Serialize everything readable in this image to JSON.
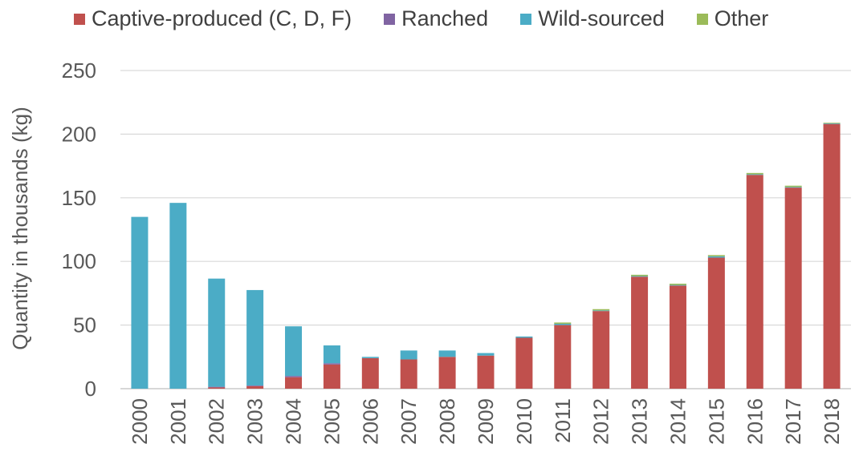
{
  "chart_data": {
    "type": "bar",
    "stacked": true,
    "title": "",
    "xlabel": "",
    "ylabel": "Quantity in thousands (kg)",
    "ylim": [
      0,
      250
    ],
    "yticks": [
      0,
      50,
      100,
      150,
      200,
      250
    ],
    "grid": true,
    "legend_position": "top",
    "categories": [
      "2000",
      "2001",
      "2002",
      "2003",
      "2004",
      "2005",
      "2006",
      "2007",
      "2008",
      "2009",
      "2010",
      "2011",
      "2012",
      "2013",
      "2014",
      "2015",
      "2016",
      "2017",
      "2018"
    ],
    "series": [
      {
        "name": "Captive-produced (C, D, F)",
        "color": "#c0504d",
        "values": [
          0,
          0,
          1,
          2,
          9,
          19,
          24,
          23,
          25,
          26,
          40,
          50,
          61,
          88,
          81,
          103,
          168,
          158,
          208
        ]
      },
      {
        "name": "Ranched",
        "color": "#8064a2",
        "values": [
          0,
          0,
          0.5,
          0.5,
          1,
          1,
          0,
          0,
          0,
          0,
          0,
          0,
          0,
          0,
          0,
          0,
          0,
          0,
          0
        ]
      },
      {
        "name": "Wild-sourced",
        "color": "#4bacc6",
        "values": [
          135,
          146,
          85,
          75,
          39,
          14,
          1,
          7,
          5,
          2,
          1,
          1,
          0.5,
          0.5,
          0.5,
          1,
          0.5,
          0.5,
          0.5
        ]
      },
      {
        "name": "Other",
        "color": "#9bbb59",
        "values": [
          0,
          0,
          0,
          0,
          0,
          0,
          0,
          0,
          0,
          0,
          0,
          1,
          1,
          1,
          1,
          1,
          1,
          1,
          0.5
        ]
      }
    ]
  }
}
